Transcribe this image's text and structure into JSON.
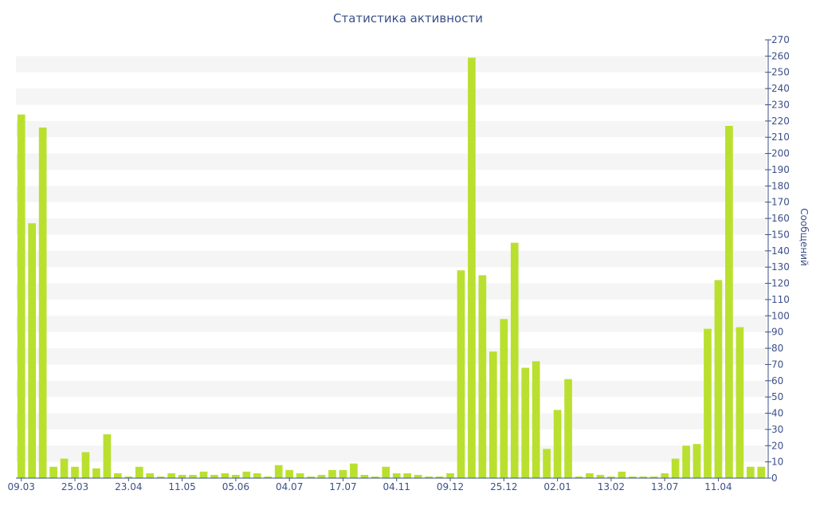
{
  "chart_data": {
    "type": "bar",
    "title": "Статистика активности",
    "xlabel": "",
    "ylabel": "Сообщений",
    "ylim": [
      0,
      270
    ],
    "ytick_step": 10,
    "grid": "alternating horizontal bands",
    "bar_color": "#b9e02f",
    "band_color": "#f5f5f5",
    "axis_color": "#3b5088",
    "x_tick_labels": [
      "09.03",
      "25.03",
      "23.04",
      "11.05",
      "05.06",
      "04.07",
      "17.07",
      "04.11",
      "09.12",
      "25.12",
      "02.01",
      "13.02",
      "13.07",
      "11.04"
    ],
    "x_tick_positions": [
      0,
      5,
      10,
      15,
      20,
      25,
      30,
      35,
      40,
      45,
      50,
      55,
      60,
      65
    ],
    "values": [
      224,
      157,
      216,
      7,
      12,
      7,
      16,
      6,
      27,
      3,
      1,
      7,
      3,
      1,
      3,
      2,
      2,
      4,
      2,
      3,
      2,
      4,
      3,
      1,
      8,
      5,
      3,
      1,
      2,
      5,
      5,
      9,
      2,
      1,
      7,
      3,
      3,
      2,
      1,
      1,
      3,
      128,
      259,
      125,
      78,
      98,
      145,
      68,
      72,
      18,
      42,
      61,
      1,
      3,
      2,
      1,
      4,
      1,
      1,
      1,
      3,
      12,
      20,
      21,
      92,
      122,
      217,
      93,
      7,
      7
    ]
  }
}
